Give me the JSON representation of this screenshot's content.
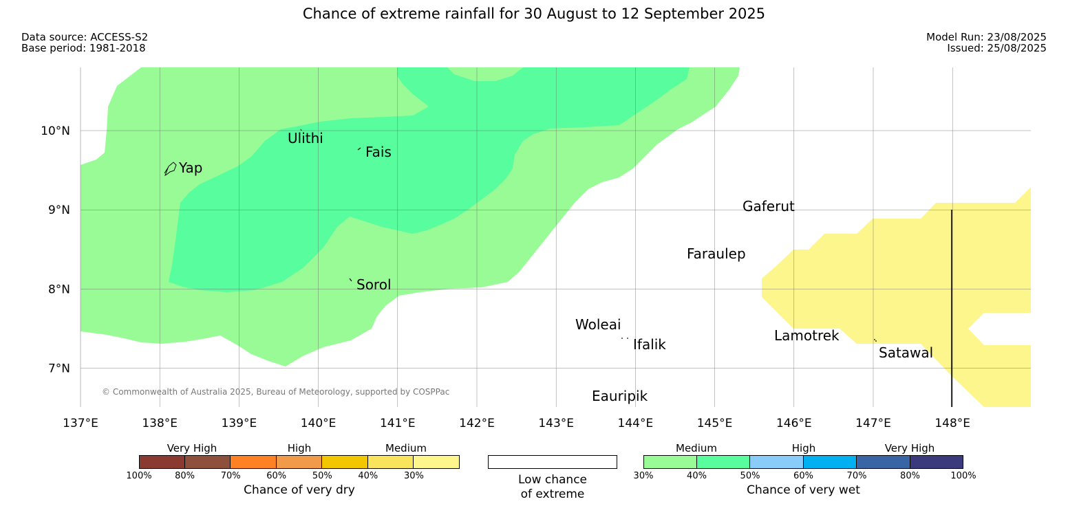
{
  "title": "Chance of extreme rainfall for 30 August to 12 September 2025",
  "data_source": "Data source: ACCESS-S2",
  "base_period": "Base period: 1981-2018",
  "model_run": "Model Run: 23/08/2025",
  "issued": "Issued: 25/08/2025",
  "copyright": "© Commonwealth of Australia 2025, Bureau of Meteorology, supported by COSPPac",
  "axes": {
    "lon_ticks": [
      "137°E",
      "138°E",
      "139°E",
      "140°E",
      "141°E",
      "142°E",
      "143°E",
      "144°E",
      "145°E",
      "146°E",
      "147°E",
      "148°E"
    ],
    "lat_ticks": [
      "10°N",
      "9°N",
      "8°N",
      "7°N"
    ],
    "lon_range": [
      137,
      149
    ],
    "lat_range": [
      6.5,
      10.8
    ],
    "grid": true
  },
  "places": [
    {
      "name": "Yap",
      "lon": 138.1,
      "lat": 9.5
    },
    {
      "name": "Ulithi",
      "lon": 139.8,
      "lat": 10.0
    },
    {
      "name": "Fais",
      "lon": 140.5,
      "lat": 9.76
    },
    {
      "name": "Sorol",
      "lon": 140.4,
      "lat": 8.1
    },
    {
      "name": "Gaferut",
      "lon": 145.4,
      "lat": 9.0
    },
    {
      "name": "Faraulep",
      "lon": 144.7,
      "lat": 8.4
    },
    {
      "name": "Woleai",
      "lon": 143.9,
      "lat": 7.4
    },
    {
      "name": "Ifalik",
      "lon": 144.0,
      "lat": 7.25
    },
    {
      "name": "Lamotrek",
      "lon": 146.3,
      "lat": 7.5
    },
    {
      "name": "Satawal",
      "lon": 147.0,
      "lat": 7.35
    },
    {
      "name": "Eauripik",
      "lon": 143.3,
      "lat": 6.7
    }
  ],
  "colors": {
    "wet_medium_30_40": "#99fb96",
    "wet_medium_40_50": "#58fd9e",
    "dry_medium_30_40": "#fdf68c"
  },
  "legend": {
    "dry": {
      "headers": [
        "Very High",
        "High",
        "Medium"
      ],
      "caption": "Chance of very dry",
      "ticks": [
        "100%",
        "80%",
        "70%",
        "60%",
        "50%",
        "40%",
        "30%"
      ],
      "colors": [
        "#8b3a32",
        "#8e4f3c",
        "#fe8124",
        "#f09a4a",
        "#f2c700",
        "#f9e55d",
        "#fdf68c"
      ]
    },
    "low": {
      "caption_line1": "Low chance",
      "caption_line2": "of extreme"
    },
    "wet": {
      "headers": [
        "Medium",
        "High",
        "Very High"
      ],
      "caption": "Chance of very wet",
      "ticks": [
        "30%",
        "40%",
        "50%",
        "60%",
        "70%",
        "80%",
        "100%"
      ],
      "colors": [
        "#99fb96",
        "#58fd9e",
        "#89ccfa",
        "#00b0f0",
        "#3865a3",
        "#3a3a7c"
      ]
    }
  }
}
